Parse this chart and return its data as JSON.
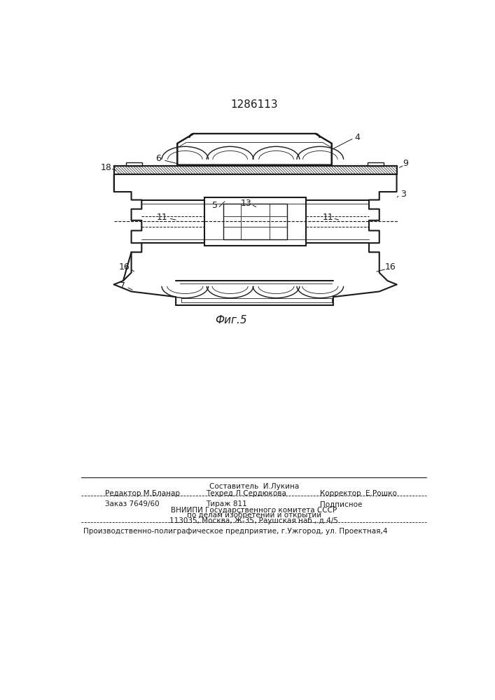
{
  "title_number": "1286113",
  "fig_label": "Фиг.5",
  "bg_color": "#ffffff",
  "line_color": "#1a1a1a",
  "footer": {
    "sostavitel": "Составитель  И.Лукина",
    "redaktor": "Редактор М.Бланар",
    "tehred": "Техред Л.Сердюкова",
    "korrektor": "Корректор  Е.Рошко",
    "zakaz": "Заказ 7649/60",
    "tirazh": "Тираж 811",
    "podpisnoe": "Подписное",
    "vniipи": "ВНИИПИ Государственного комитета СССР",
    "po_delam": "по делам изобретений и открытий",
    "address": "113035, Москва, Ж-35, Раушская наб., д.4/5",
    "proizv": "Производственно-полиграфическое предприятие, г.Ужгород, ул. Проектная,4"
  }
}
